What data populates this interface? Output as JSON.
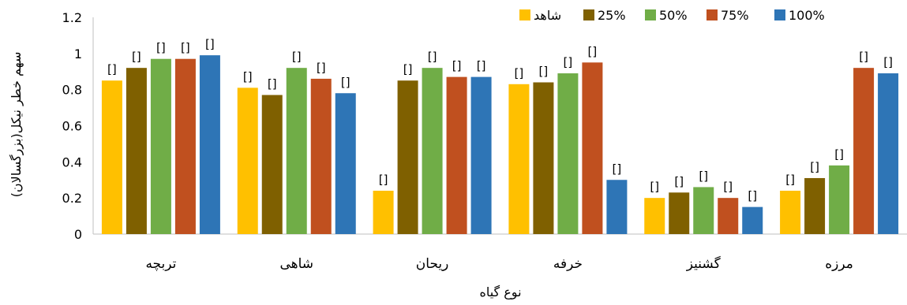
{
  "chart_data": {
    "type": "bar",
    "title": "",
    "xlabel": "نوع گیاه",
    "ylabel": "سهم خطر نیکل(بزرگسالان)",
    "ylim": [
      0,
      1.2
    ],
    "yticks": [
      0,
      0.2,
      0.4,
      0.6,
      0.8,
      1,
      1.2
    ],
    "ytick_labels": [
      "0",
      "0.2",
      "0.4",
      "0.6",
      "0.8",
      "1",
      "1.2"
    ],
    "grid": false,
    "legend_position": "top-right",
    "categories": [
      "تربچه",
      "شاهی",
      "ریحان",
      "خرفه",
      "گشنیز",
      "مرزه"
    ],
    "data_label_text": "[]",
    "series": [
      {
        "name": "شاهد",
        "color": "#FFC000",
        "values": [
          0.85,
          0.81,
          0.24,
          0.83,
          0.2,
          0.24
        ]
      },
      {
        "name": "25%",
        "color": "#7F6000",
        "values": [
          0.92,
          0.77,
          0.85,
          0.84,
          0.23,
          0.31
        ]
      },
      {
        "name": "50%",
        "color": "#70AD47",
        "values": [
          0.97,
          0.92,
          0.92,
          0.89,
          0.26,
          0.38
        ]
      },
      {
        "name": "75%",
        "color": "#C0501F",
        "values": [
          0.97,
          0.86,
          0.87,
          0.95,
          0.2,
          0.92
        ]
      },
      {
        "name": "100%",
        "color": "#2E75B6",
        "values": [
          0.99,
          0.78,
          0.87,
          0.3,
          0.15,
          0.89
        ]
      }
    ]
  }
}
